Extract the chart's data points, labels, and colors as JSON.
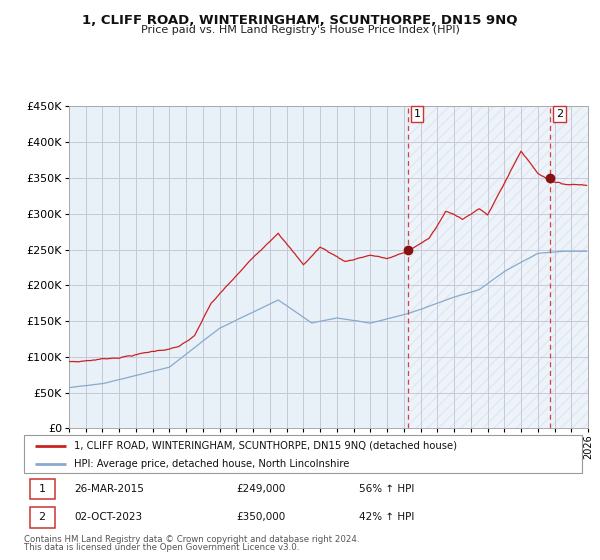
{
  "title": "1, CLIFF ROAD, WINTERINGHAM, SCUNTHORPE, DN15 9NQ",
  "subtitle": "Price paid vs. HM Land Registry's House Price Index (HPI)",
  "background_color": "#ffffff",
  "plot_bg_color": "#e8f0f8",
  "plot_bg_color_right": "#dce8f5",
  "grid_color": "#c8c8d8",
  "red_line_color": "#cc2222",
  "blue_line_color": "#88aacc",
  "dashed_line_color": "#cc4444",
  "marker_color": "#881111",
  "ylim": [
    0,
    450000
  ],
  "yticks": [
    0,
    50000,
    100000,
    150000,
    200000,
    250000,
    300000,
    350000,
    400000,
    450000
  ],
  "xlim_start": 1995,
  "xlim_end": 2026,
  "annotation1": {
    "label": "1",
    "date": "26-MAR-2015",
    "price": "£249,000",
    "pct": "56% ↑ HPI",
    "x_year": 2015.25
  },
  "annotation2": {
    "label": "2",
    "date": "02-OCT-2023",
    "price": "£350,000",
    "pct": "42% ↑ HPI",
    "x_year": 2023.75
  },
  "legend_line1": "1, CLIFF ROAD, WINTERINGHAM, SCUNTHORPE, DN15 9NQ (detached house)",
  "legend_line2": "HPI: Average price, detached house, North Lincolnshire",
  "footer1": "Contains HM Land Registry data © Crown copyright and database right 2024.",
  "footer2": "This data is licensed under the Open Government Licence v3.0."
}
